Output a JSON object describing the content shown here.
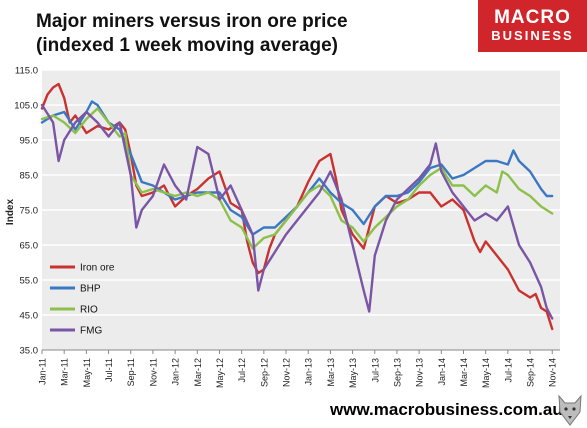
{
  "header": {
    "title": "Major miners versus iron ore price\n(indexed 1 week moving average)",
    "logo_line1": "MACRO",
    "logo_line2": "BUSINESS",
    "website": "www.macrobusiness.com.au"
  },
  "colors": {
    "logo_bg": "#d0262b",
    "plot_bg": "#ececec",
    "iron_ore": "#c9322f",
    "bhp": "#3a78c4",
    "rio": "#8cc04a",
    "fmg": "#7a55a5"
  },
  "chart_data": {
    "type": "line",
    "title": "Major miners versus iron ore price (indexed 1 week moving average)",
    "xlabel": "",
    "ylabel": "Index",
    "ylim": [
      35,
      115
    ],
    "yticks": [
      35,
      45,
      55,
      65,
      75,
      85,
      95,
      105,
      115
    ],
    "ytick_labels": [
      "35.0",
      "45.0",
      "55.0",
      "65.0",
      "75.0",
      "85.0",
      "95.0",
      "105.0",
      "115.0"
    ],
    "xlim": [
      0,
      46.7
    ],
    "xticks": [
      "Jan-11",
      "Mar-11",
      "May-11",
      "Jul-11",
      "Sep-11",
      "Nov-11",
      "Jan-12",
      "Mar-12",
      "May-12",
      "Jul-12",
      "Sep-12",
      "Nov-12",
      "Jan-13",
      "Mar-13",
      "May-13",
      "Jul-13",
      "Sep-13",
      "Nov-13",
      "Jan-14",
      "Mar-14",
      "May-14",
      "Jul-14",
      "Sep-14",
      "Nov-14"
    ],
    "grid": true,
    "legend_position": "lower-left",
    "x_unit": "months since Jan-11",
    "series": [
      {
        "name": "Iron ore",
        "color": "#c9322f",
        "x": [
          0,
          0.5,
          1,
          1.5,
          2,
          2.5,
          3,
          4,
          5,
          6,
          7,
          7.5,
          8,
          8.5,
          9,
          10,
          11,
          12,
          13,
          14,
          15,
          16,
          17,
          18,
          18.5,
          19,
          19.5,
          20,
          20.5,
          21,
          22,
          23,
          24,
          25,
          26,
          26.5,
          27,
          28,
          29,
          30,
          31,
          32,
          33,
          34,
          35,
          36,
          37,
          38,
          39,
          39.5,
          40,
          41,
          42,
          43,
          44,
          44.5,
          45,
          45.5,
          46
        ],
        "y": [
          104,
          108,
          110,
          111,
          107,
          100,
          102,
          97,
          99,
          98,
          100,
          98,
          91,
          82,
          79,
          80,
          82,
          76,
          79,
          81,
          84,
          86,
          77,
          75,
          66,
          60,
          57,
          58,
          64,
          68,
          72,
          76,
          83,
          89,
          91,
          84,
          75,
          68,
          64,
          76,
          79,
          77,
          78,
          80,
          80,
          76,
          78,
          75,
          66,
          63,
          66,
          62,
          58,
          52,
          50,
          51,
          47,
          46,
          41
        ]
      },
      {
        "name": "BHP",
        "color": "#3a78c4",
        "x": [
          0,
          1,
          2,
          3,
          4,
          4.5,
          5,
          6,
          7,
          8,
          9,
          10,
          11,
          12,
          13,
          14,
          15,
          16,
          17,
          18,
          19,
          20,
          21,
          22,
          23,
          24,
          25,
          26,
          27,
          28,
          29,
          30,
          31,
          32,
          33,
          34,
          35,
          36,
          37,
          38,
          39,
          40,
          41,
          42,
          42.5,
          43,
          44,
          45,
          45.5,
          46
        ],
        "y": [
          100,
          102,
          103,
          98,
          103,
          106,
          105,
          100,
          98,
          91,
          83,
          82,
          80,
          78,
          79,
          80,
          80,
          80,
          75,
          73,
          68,
          70,
          70,
          73,
          76,
          80,
          84,
          80,
          77,
          75,
          71,
          76,
          79,
          79,
          80,
          83,
          87,
          88,
          84,
          85,
          87,
          89,
          89,
          88,
          92,
          89,
          86,
          81,
          79,
          79
        ]
      },
      {
        "name": "RIO",
        "color": "#8cc04a",
        "x": [
          0,
          1,
          2,
          3,
          4,
          5,
          6,
          7,
          7.5,
          8,
          9,
          10,
          11,
          12,
          13,
          14,
          15,
          16,
          17,
          18,
          19,
          20,
          21,
          22,
          23,
          24,
          25,
          26,
          27,
          28,
          29,
          30,
          31,
          32,
          33,
          34,
          35,
          36,
          37,
          38,
          39,
          40,
          41,
          41.5,
          42,
          43,
          44,
          45,
          46
        ],
        "y": [
          101,
          102,
          100,
          97,
          101,
          104,
          100,
          96,
          97,
          85,
          80,
          81,
          80,
          79,
          80,
          79,
          80,
          78,
          72,
          70,
          64,
          67,
          68,
          72,
          76,
          80,
          82,
          79,
          72,
          70,
          66,
          70,
          73,
          76,
          78,
          82,
          85,
          87,
          82,
          82,
          79,
          82,
          80,
          86,
          85,
          81,
          79,
          76,
          74
        ]
      },
      {
        "name": "FMG",
        "color": "#7a55a5",
        "x": [
          0,
          1,
          1.5,
          2,
          3,
          4,
          5,
          6,
          7,
          8,
          8.5,
          9,
          10,
          11,
          12,
          13,
          14,
          15,
          16,
          17,
          18,
          19,
          19.5,
          20,
          21,
          22,
          23,
          24,
          25,
          26,
          27,
          28,
          29,
          29.5,
          30,
          31,
          32,
          33,
          34,
          35,
          35.5,
          36,
          37,
          38,
          39,
          40,
          41,
          42,
          43,
          44,
          45,
          45.5,
          46
        ],
        "y": [
          105,
          100,
          89,
          95,
          100,
          103,
          100,
          96,
          100,
          85,
          70,
          75,
          79,
          88,
          82,
          78,
          93,
          91,
          78,
          82,
          75,
          68,
          52,
          58,
          63,
          68,
          72,
          76,
          80,
          86,
          78,
          65,
          52,
          46,
          62,
          72,
          78,
          81,
          84,
          88,
          94,
          86,
          80,
          76,
          72,
          74,
          72,
          76,
          65,
          60,
          53,
          47,
          44
        ]
      }
    ]
  }
}
